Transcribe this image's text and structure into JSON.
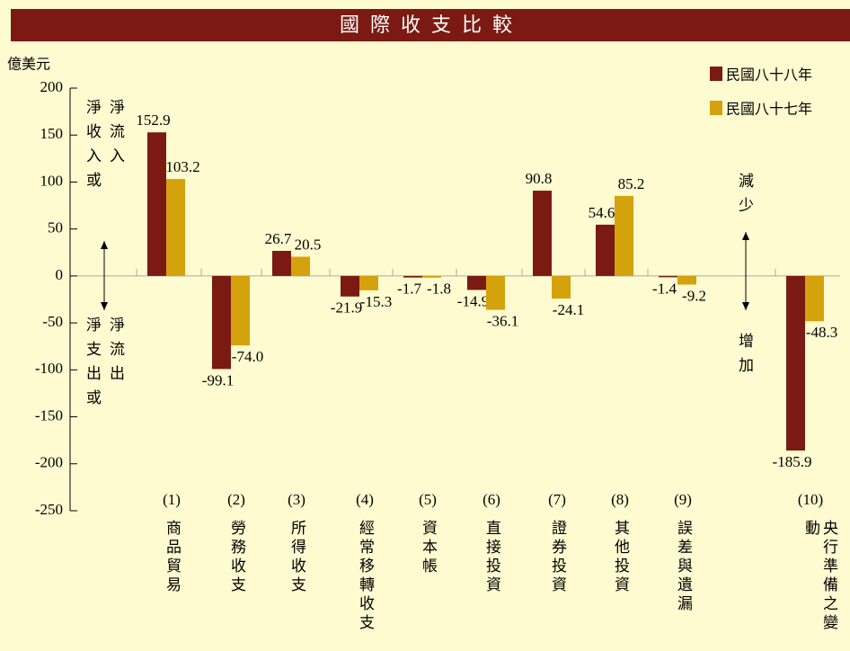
{
  "chart_data": {
    "type": "bar",
    "title": "國際收支比較",
    "y_axis_label": "億美元",
    "categories": [
      "(1)",
      "(2)",
      "(3)",
      "(4)",
      "(5)",
      "(6)",
      "(7)",
      "(8)",
      "(9)",
      "(10)"
    ],
    "category_names": [
      "商品貿易",
      "勞務收支",
      "所得收支",
      "經常移轉收支",
      "資本帳",
      "直接投資",
      "證券投資",
      "其他投資",
      "誤差與遺漏",
      "央行準備之變動"
    ],
    "series": [
      {
        "name": "民國八十八年",
        "color": "#7b1a12",
        "values": [
          152.9,
          -99.1,
          26.7,
          -21.9,
          -1.7,
          -14.9,
          90.8,
          54.6,
          -1.4,
          -185.9
        ],
        "value_labels": [
          "152.9",
          "-99.1",
          "26.7",
          "-21.9",
          "-1.7",
          "-14.9",
          "90.8",
          "54.6",
          "-1.4",
          "-185.9"
        ]
      },
      {
        "name": "民國八十七年",
        "color": "#d4a20c",
        "values": [
          103.2,
          -74.0,
          20.5,
          -15.3,
          -1.8,
          -36.1,
          -24.1,
          85.2,
          -9.2,
          -48.3
        ],
        "value_labels": [
          "103.2",
          "-74.0",
          "20.5",
          "-15.3",
          "-1.8",
          "-36.1",
          "-24.1",
          "85.2",
          "-9.2",
          "-48.3"
        ]
      }
    ],
    "ylim": [
      -250,
      200
    ],
    "yticks": [
      -250,
      -200,
      -150,
      -100,
      -50,
      0,
      50,
      100,
      150,
      200
    ],
    "annotations": [
      "淨流入",
      "淨收入或",
      "淨流出",
      "淨支出或",
      "減少",
      "增加"
    ],
    "legend": "top-right"
  }
}
